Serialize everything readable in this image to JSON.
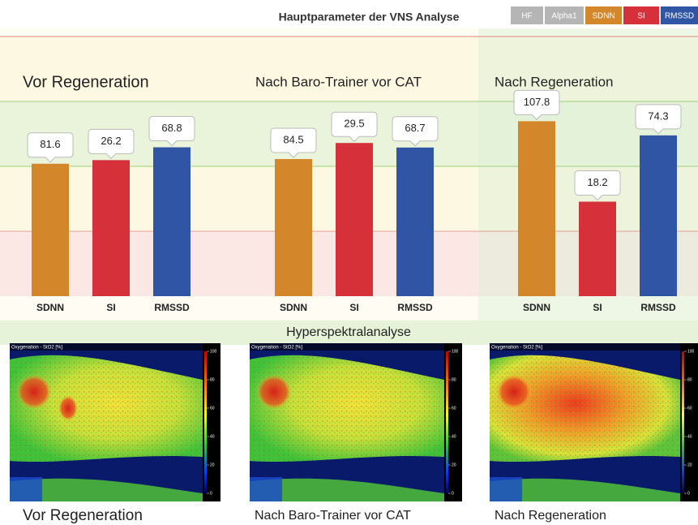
{
  "header": {
    "title": "Hauptparameter der VNS Analyse",
    "legend": [
      {
        "label": "HF",
        "color": "#b5b5b5"
      },
      {
        "label": "Alpha1",
        "color": "#b5b5b5"
      },
      {
        "label": "SDNN",
        "color": "#d4862a"
      },
      {
        "label": "SI",
        "color": "#d6303a"
      },
      {
        "label": "RMSSD",
        "color": "#2f55a4"
      }
    ]
  },
  "chart_data": [
    {
      "type": "bar",
      "title": "Vor Regeneration",
      "series": [
        {
          "name": "SDNN",
          "color": "#d4862a",
          "values": [
            81.6
          ],
          "ylim": [
            0,
            160
          ]
        },
        {
          "name": "SI",
          "color": "#d6303a",
          "values": [
            26.2
          ],
          "ylim": [
            0,
            50
          ]
        },
        {
          "name": "RMSSD",
          "color": "#2f55a4",
          "values": [
            68.8
          ],
          "ylim": [
            0,
            120
          ]
        }
      ]
    },
    {
      "type": "bar",
      "title": "Nach Baro-Trainer vor CAT",
      "series": [
        {
          "name": "SDNN",
          "color": "#d4862a",
          "values": [
            84.5
          ],
          "ylim": [
            0,
            160
          ]
        },
        {
          "name": "SI",
          "color": "#d6303a",
          "values": [
            29.5
          ],
          "ylim": [
            0,
            50
          ]
        },
        {
          "name": "RMSSD",
          "color": "#2f55a4",
          "values": [
            68.7
          ],
          "ylim": [
            0,
            120
          ]
        }
      ]
    },
    {
      "type": "bar",
      "title": "Nach Regeneration",
      "series": [
        {
          "name": "SDNN",
          "color": "#d4862a",
          "values": [
            107.8
          ],
          "ylim": [
            0,
            160
          ]
        },
        {
          "name": "SI",
          "color": "#d6303a",
          "values": [
            18.2
          ],
          "ylim": [
            0,
            50
          ]
        },
        {
          "name": "RMSSD",
          "color": "#2f55a4",
          "values": [
            74.3
          ],
          "ylim": [
            0,
            120
          ]
        }
      ]
    }
  ],
  "hyperspectral": {
    "title": "Hyperspektralanalyse",
    "panels": [
      {
        "label": "Oxygenation - StO2 [%]",
        "caption": "Vor Regeneration"
      },
      {
        "label": "Oxygenation - StO2 [%]",
        "caption": "Nach Baro-Trainer vor CAT"
      },
      {
        "label": "Oxygenation - StO2 [%]",
        "caption": "Nach Regeneration"
      }
    ],
    "colorbar_ticks": [
      100,
      80,
      60,
      40,
      20,
      0
    ]
  }
}
